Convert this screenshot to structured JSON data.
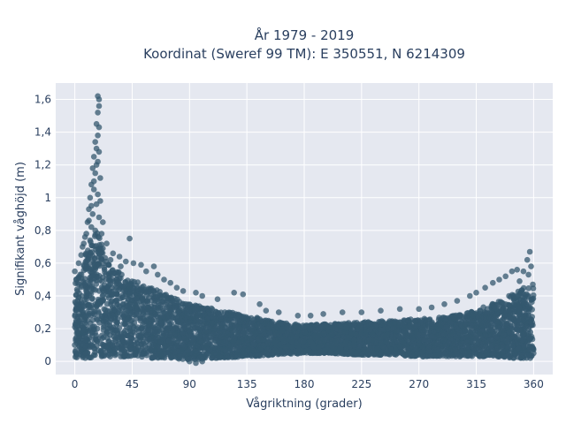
{
  "chart_data": {
    "type": "scatter",
    "title_line1": "År 1979 - 2019",
    "title_line2": "Koordinat (Sweref 99 TM): E 350551, N 6214309",
    "xlabel": "Vågriktning (grader)",
    "ylabel": "Signifikant våghöjd (m)",
    "xlim": [
      -15,
      375
    ],
    "ylim": [
      -0.08,
      1.7
    ],
    "xticks": [
      0,
      45,
      90,
      135,
      180,
      225,
      270,
      315,
      360
    ],
    "xtick_labels": [
      "0",
      "45",
      "90",
      "135",
      "180",
      "225",
      "270",
      "315",
      "360"
    ],
    "yticks": [
      0,
      0.2,
      0.4,
      0.6,
      0.8,
      1.0,
      1.2,
      1.4,
      1.6
    ],
    "ytick_labels": [
      "0",
      "0,2",
      "0,4",
      "0,6",
      "0,8",
      "1",
      "1,2",
      "1,4",
      "1,6"
    ],
    "grid": true,
    "marker_color": "#34586f",
    "background_color": "#e5e8f0",
    "points": [
      [
        18,
        1.62
      ],
      [
        19,
        1.6
      ],
      [
        19,
        1.56
      ],
      [
        18,
        1.52
      ],
      [
        17,
        1.45
      ],
      [
        19,
        1.43
      ],
      [
        18,
        1.38
      ],
      [
        16,
        1.34
      ],
      [
        17,
        1.3
      ],
      [
        19,
        1.28
      ],
      [
        15,
        1.25
      ],
      [
        18,
        1.22
      ],
      [
        14,
        1.18
      ],
      [
        16,
        1.15
      ],
      [
        20,
        1.12
      ],
      [
        13,
        1.08
      ],
      [
        15,
        1.05
      ],
      [
        18,
        1.02
      ],
      [
        12,
        1.0
      ],
      [
        17,
        0.96
      ],
      [
        11,
        0.93
      ],
      [
        14,
        0.9
      ],
      [
        19,
        0.88
      ],
      [
        10,
        0.85
      ],
      [
        13,
        0.82
      ],
      [
        16,
        0.8
      ],
      [
        21,
        0.78
      ],
      [
        8,
        0.76
      ],
      [
        12,
        0.74
      ],
      [
        25,
        0.72
      ],
      [
        43,
        0.75
      ],
      [
        6,
        0.7
      ],
      [
        22,
        0.69
      ],
      [
        30,
        0.66
      ],
      [
        35,
        0.64
      ],
      [
        28,
        0.62
      ],
      [
        40,
        0.61
      ],
      [
        46,
        0.6
      ],
      [
        52,
        0.59
      ],
      [
        62,
        0.58
      ],
      [
        36,
        0.58
      ],
      [
        56,
        0.55
      ],
      [
        65,
        0.53
      ],
      [
        70,
        0.5
      ],
      [
        75,
        0.48
      ],
      [
        80,
        0.45
      ],
      [
        85,
        0.43
      ],
      [
        95,
        0.42
      ],
      [
        100,
        0.4
      ],
      [
        112,
        0.38
      ],
      [
        125,
        0.42
      ],
      [
        132,
        0.41
      ],
      [
        145,
        0.35
      ],
      [
        150,
        0.31
      ],
      [
        160,
        0.3
      ],
      [
        175,
        0.28
      ],
      [
        185,
        0.28
      ],
      [
        195,
        0.29
      ],
      [
        210,
        0.3
      ],
      [
        225,
        0.3
      ],
      [
        240,
        0.31
      ],
      [
        255,
        0.32
      ],
      [
        270,
        0.32
      ],
      [
        280,
        0.33
      ],
      [
        290,
        0.35
      ],
      [
        300,
        0.37
      ],
      [
        310,
        0.4
      ],
      [
        315,
        0.42
      ],
      [
        322,
        0.45
      ],
      [
        328,
        0.48
      ],
      [
        333,
        0.5
      ],
      [
        338,
        0.52
      ],
      [
        343,
        0.55
      ],
      [
        347,
        0.56
      ],
      [
        352,
        0.55
      ],
      [
        356,
        0.53
      ],
      [
        358,
        0.58
      ],
      [
        357,
        0.67
      ],
      [
        355,
        0.62
      ],
      [
        349,
        0.49
      ],
      [
        0,
        0.55
      ],
      [
        1,
        0.5
      ],
      [
        2,
        0.48
      ],
      [
        0,
        0.1
      ],
      [
        1,
        0.05
      ],
      [
        359,
        0.08
      ],
      [
        360,
        0.05
      ],
      [
        90,
        0.0
      ],
      [
        95,
        -0.01
      ],
      [
        100,
        0.0
      ],
      [
        3,
        0.6
      ],
      [
        5,
        0.65
      ],
      [
        7,
        0.72
      ],
      [
        9,
        0.78
      ],
      [
        11,
        0.86
      ],
      [
        13,
        0.95
      ],
      [
        15,
        1.1
      ],
      [
        17,
        1.2
      ],
      [
        20,
        0.98
      ],
      [
        22,
        0.85
      ]
    ],
    "series_envelope": {
      "x": [
        0,
        10,
        18,
        25,
        35,
        45,
        60,
        75,
        90,
        110,
        135,
        160,
        180,
        200,
        225,
        250,
        270,
        290,
        310,
        330,
        345,
        360
      ],
      "y_low": [
        0.02,
        0.02,
        0.03,
        0.03,
        0.03,
        0.03,
        0.02,
        0.02,
        0.01,
        0.02,
        0.03,
        0.04,
        0.05,
        0.05,
        0.04,
        0.04,
        0.03,
        0.03,
        0.03,
        0.03,
        0.02,
        0.02
      ],
      "y_high": [
        0.48,
        0.7,
        0.8,
        0.62,
        0.55,
        0.5,
        0.45,
        0.4,
        0.35,
        0.32,
        0.28,
        0.24,
        0.22,
        0.23,
        0.24,
        0.25,
        0.26,
        0.27,
        0.3,
        0.36,
        0.42,
        0.48
      ]
    }
  }
}
